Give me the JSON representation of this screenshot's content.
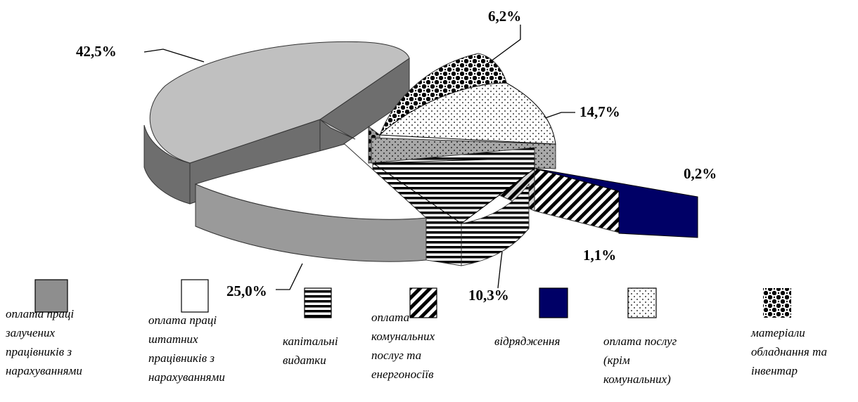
{
  "chart_data": {
    "type": "pie",
    "style": "3d-exploded",
    "title": "",
    "slices": [
      {
        "key": "hired",
        "label": "оплата праці\nзалучених\nпрацівників з\nнарахуваннями",
        "value": 42.5,
        "value_label": "42,5%",
        "pattern": "gray"
      },
      {
        "key": "staff",
        "label": "оплата праці\nштатних\nпрацівників з\nнарахуваннями",
        "value": 25.0,
        "value_label": "25,0%",
        "pattern": "white"
      },
      {
        "key": "capital",
        "label": "капітальні\nвидатки",
        "value": 10.3,
        "value_label": "10,3%",
        "pattern": "hlines"
      },
      {
        "key": "utilities",
        "label": "оплата\nкомунальних\nпослуг та\nенергоносіїв",
        "value": 1.1,
        "value_label": "1,1%",
        "pattern": "diagonal"
      },
      {
        "key": "travel",
        "label": "відрядження",
        "value": 0.2,
        "value_label": "0,2%",
        "pattern": "navy"
      },
      {
        "key": "services",
        "label": "оплата послуг\n(крім\nкомунальних)",
        "value": 14.7,
        "value_label": "14,7%",
        "pattern": "dots"
      },
      {
        "key": "materials",
        "label": "матеріали\nобладнання та\nінвентар",
        "value": 6.2,
        "value_label": "6,2%",
        "pattern": "checker"
      }
    ],
    "legend_position": "bottom",
    "colors": {
      "gray_top": "#c0c0c0",
      "gray_side": "#6e6e6e",
      "staff_top": "#ffffff",
      "staff_side": "#9a9a9a",
      "navy": "#000066"
    }
  }
}
